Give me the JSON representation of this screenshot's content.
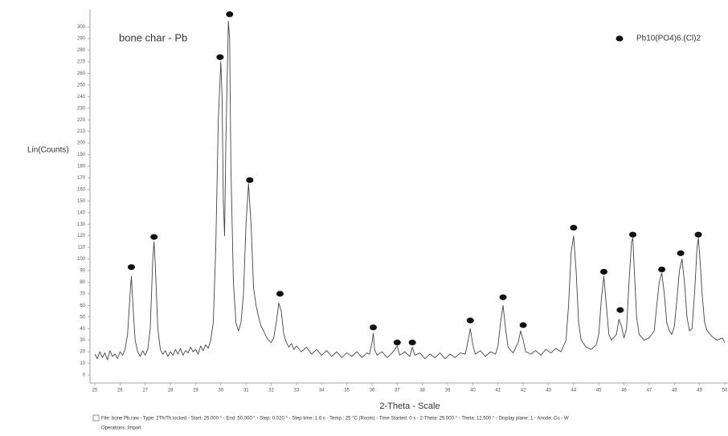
{
  "chart_data": {
    "type": "line",
    "title": "bone char - Pb",
    "y_label": "Lin(Counts)",
    "x_label": "2-Theta - Scale",
    "footer": [
      "File: bone Pb.raw - Type: 2Th/Th locked - Start: 25.000 ° - End: 50.000 ° - Step: 0.020 ° - Step time: 1.6 s - Temp.: 25 °C (Room) - Time Started: 0 s - 2-Theta: 25.000 ° - Theta: 12.500 ° - Display plane: 1 - Anode: Cu - W",
      "Operations: Import"
    ],
    "color": "#444444",
    "x": [
      25.0,
      25.1,
      25.2,
      25.3,
      25.4,
      25.5,
      25.6,
      25.7,
      25.8,
      25.9,
      26.0,
      26.1,
      26.2,
      26.3,
      26.4,
      26.45,
      26.5,
      26.6,
      26.7,
      26.8,
      26.9,
      27.0,
      27.1,
      27.2,
      27.3,
      27.35,
      27.4,
      27.5,
      27.6,
      27.7,
      27.8,
      27.9,
      28.0,
      28.1,
      28.2,
      28.3,
      28.4,
      28.5,
      28.6,
      28.7,
      28.8,
      28.9,
      29.0,
      29.1,
      29.2,
      29.3,
      29.4,
      29.5,
      29.6,
      29.7,
      29.8,
      29.9,
      30.0,
      30.05,
      30.1,
      30.15,
      30.2,
      30.3,
      30.35,
      30.4,
      30.5,
      30.6,
      30.7,
      30.8,
      30.9,
      31.0,
      31.1,
      31.2,
      31.3,
      31.4,
      31.5,
      31.6,
      31.7,
      31.8,
      31.9,
      32.0,
      32.1,
      32.2,
      32.3,
      32.4,
      32.5,
      32.6,
      32.7,
      32.8,
      32.9,
      33.0,
      33.2,
      33.4,
      33.6,
      33.8,
      34.0,
      34.2,
      34.4,
      34.6,
      34.8,
      35.0,
      35.2,
      35.4,
      35.6,
      35.8,
      35.9,
      36.0,
      36.05,
      36.1,
      36.2,
      36.4,
      36.6,
      36.8,
      37.0,
      37.1,
      37.3,
      37.5,
      37.6,
      37.7,
      37.9,
      38.1,
      38.3,
      38.5,
      38.7,
      38.9,
      39.1,
      39.3,
      39.5,
      39.7,
      39.8,
      39.9,
      40.0,
      40.1,
      40.3,
      40.5,
      40.7,
      40.9,
      41.0,
      41.1,
      41.2,
      41.3,
      41.4,
      41.6,
      41.8,
      41.9,
      42.0,
      42.1,
      42.3,
      42.5,
      42.7,
      42.9,
      43.1,
      43.3,
      43.5,
      43.7,
      43.8,
      43.9,
      44.0,
      44.1,
      44.2,
      44.3,
      44.5,
      44.7,
      44.9,
      45.0,
      45.1,
      45.2,
      45.3,
      45.4,
      45.5,
      45.7,
      45.8,
      45.9,
      46.0,
      46.1,
      46.2,
      46.3,
      46.35,
      46.4,
      46.5,
      46.6,
      46.8,
      47.0,
      47.2,
      47.3,
      47.4,
      47.5,
      47.6,
      47.7,
      47.8,
      47.9,
      48.0,
      48.1,
      48.2,
      48.3,
      48.4,
      48.5,
      48.6,
      48.7,
      48.8,
      48.9,
      48.95,
      49.0,
      49.1,
      49.2,
      49.3,
      49.5,
      49.7,
      49.9,
      50.0
    ],
    "values": [
      18,
      14,
      20,
      15,
      19,
      13,
      21,
      16,
      18,
      14,
      20,
      17,
      22,
      35,
      70,
      85,
      65,
      30,
      20,
      16,
      21,
      17,
      22,
      40,
      100,
      115,
      95,
      40,
      22,
      18,
      21,
      16,
      20,
      17,
      22,
      18,
      23,
      17,
      21,
      19,
      24,
      20,
      22,
      18,
      25,
      21,
      26,
      23,
      30,
      45,
      110,
      220,
      270,
      240,
      150,
      120,
      200,
      305,
      290,
      180,
      80,
      45,
      38,
      45,
      70,
      130,
      165,
      130,
      75,
      60,
      50,
      42,
      38,
      33,
      30,
      28,
      32,
      45,
      62,
      55,
      35,
      28,
      24,
      27,
      22,
      25,
      20,
      24,
      18,
      22,
      17,
      21,
      16,
      20,
      15,
      19,
      16,
      20,
      15,
      19,
      18,
      28,
      36,
      22,
      17,
      20,
      15,
      19,
      25,
      17,
      20,
      16,
      24,
      17,
      19,
      14,
      18,
      15,
      19,
      14,
      18,
      15,
      19,
      18,
      28,
      40,
      26,
      18,
      21,
      16,
      20,
      18,
      25,
      45,
      60,
      40,
      24,
      19,
      28,
      38,
      30,
      20,
      18,
      21,
      17,
      22,
      19,
      23,
      20,
      30,
      60,
      105,
      120,
      90,
      45,
      30,
      24,
      22,
      26,
      35,
      65,
      85,
      60,
      35,
      30,
      35,
      48,
      42,
      32,
      40,
      80,
      115,
      118,
      95,
      50,
      35,
      30,
      32,
      38,
      60,
      80,
      88,
      70,
      45,
      38,
      35,
      42,
      65,
      90,
      100,
      80,
      50,
      38,
      40,
      70,
      110,
      118,
      105,
      70,
      45,
      38,
      33,
      30,
      32,
      28
    ],
    "series": [
      {
        "name": "Pb10(PO4)6.(Cl)2",
        "type": "scatter",
        "color": "#111111",
        "x": [
          26.45,
          27.35,
          29.97,
          30.35,
          31.15,
          32.35,
          36.05,
          37.0,
          37.6,
          39.9,
          41.2,
          42.0,
          44.0,
          45.2,
          45.85,
          46.35,
          47.5,
          48.25,
          48.95
        ],
        "values": [
          93,
          119,
          274,
          311,
          168,
          70,
          41,
          28,
          28,
          47,
          67,
          43,
          127,
          89,
          56,
          121,
          91,
          105,
          121
        ]
      }
    ],
    "xlim": [
      25,
      50
    ],
    "ylim": [
      0,
      315
    ],
    "xticks": [
      25,
      26,
      27,
      28,
      29,
      30,
      31,
      32,
      33,
      34,
      35,
      36,
      37,
      38,
      39,
      40,
      41,
      42,
      43,
      44,
      45,
      46,
      47,
      48,
      49,
      50
    ],
    "yticks": [
      0,
      10,
      20,
      30,
      40,
      50,
      60,
      70,
      80,
      90,
      100,
      110,
      120,
      130,
      140,
      150,
      160,
      170,
      180,
      190,
      200,
      210,
      220,
      230,
      240,
      250,
      260,
      270,
      280,
      290,
      300
    ]
  }
}
